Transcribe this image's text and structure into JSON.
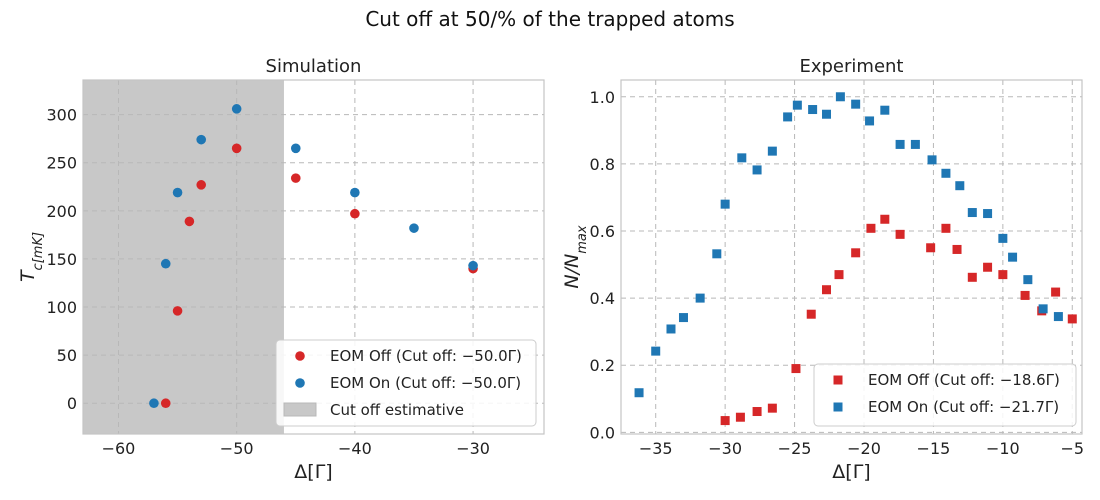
{
  "figure": {
    "suptitle": "Cut off at 50/% of the trapped atoms"
  },
  "colors": {
    "red": "#d62728",
    "blue": "#1f77b4",
    "shade": "#c8c8c8",
    "grid": "#c8c8c8",
    "frame": "#c4c4c4"
  },
  "chart_data": [
    {
      "type": "scatter",
      "title": "Simulation",
      "xlabel": "Δ[Γ]",
      "ylabel": "T_c[mK]",
      "xlim": [
        -63,
        -24
      ],
      "ylim": [
        -32,
        336
      ],
      "xticks": [
        -60,
        -50,
        -40,
        -30
      ],
      "xtick_labels": [
        "−60",
        "−50",
        "−40",
        "−30"
      ],
      "yticks": [
        0,
        50,
        100,
        150,
        200,
        250,
        300
      ],
      "ytick_labels": [
        "0",
        "50",
        "100",
        "150",
        "200",
        "250",
        "300"
      ],
      "shaded_region": {
        "x": [
          -63,
          -46
        ],
        "label": "Cut off estimative"
      },
      "grid": true,
      "legend_position": "lower-right",
      "marker": "circle",
      "series": [
        {
          "name": "EOM Off (Cut off: −50.0Γ)",
          "color": "#d62728",
          "points": [
            [
              -56,
              0
            ],
            [
              -55,
              96
            ],
            [
              -54,
              189
            ],
            [
              -53,
              227
            ],
            [
              -50,
              265
            ],
            [
              -45,
              234
            ],
            [
              -40,
              197
            ],
            [
              -30,
              140
            ]
          ]
        },
        {
          "name": "EOM On (Cut off: −50.0Γ)",
          "color": "#1f77b4",
          "points": [
            [
              -57,
              0
            ],
            [
              -56,
              145
            ],
            [
              -55,
              219
            ],
            [
              -53,
              274
            ],
            [
              -50,
              306
            ],
            [
              -45,
              265
            ],
            [
              -40,
              219
            ],
            [
              -35,
              182
            ],
            [
              -30,
              143
            ]
          ]
        }
      ]
    },
    {
      "type": "scatter",
      "title": "Experiment",
      "xlabel": "Δ[Γ]",
      "ylabel": "N/N_max",
      "xlim": [
        -37.5,
        -4.3
      ],
      "ylim": [
        -0.005,
        1.05
      ],
      "xticks": [
        -35,
        -30,
        -25,
        -20,
        -15,
        -10,
        -5
      ],
      "xtick_labels": [
        "−35",
        "−30",
        "−25",
        "−20",
        "−15",
        "−10",
        "−5"
      ],
      "yticks": [
        0.0,
        0.2,
        0.4,
        0.6,
        0.8,
        1.0
      ],
      "ytick_labels": [
        "0.0",
        "0.2",
        "0.4",
        "0.6",
        "0.8",
        "1.0"
      ],
      "grid": true,
      "legend_position": "lower-right",
      "marker": "square",
      "series": [
        {
          "name": "EOM Off (Cut off: −18.6Γ)",
          "color": "#d62728",
          "points": [
            [
              -30,
              0.035
            ],
            [
              -28.9,
              0.045
            ],
            [
              -27.7,
              0.062
            ],
            [
              -26.6,
              0.072
            ],
            [
              -24.9,
              0.19
            ],
            [
              -23.8,
              0.352
            ],
            [
              -22.7,
              0.425
            ],
            [
              -21.8,
              0.47
            ],
            [
              -20.6,
              0.535
            ],
            [
              -19.5,
              0.608
            ],
            [
              -18.5,
              0.635
            ],
            [
              -17.4,
              0.59
            ],
            [
              -15.2,
              0.55
            ],
            [
              -14.1,
              0.608
            ],
            [
              -13.3,
              0.545
            ],
            [
              -12.2,
              0.462
            ],
            [
              -11.1,
              0.492
            ],
            [
              -10.0,
              0.47
            ],
            [
              -8.4,
              0.408
            ],
            [
              -7.2,
              0.362
            ],
            [
              -6.2,
              0.418
            ],
            [
              -5.0,
              0.338
            ]
          ]
        },
        {
          "name": "EOM On (Cut off: −21.7Γ)",
          "color": "#1f77b4",
          "points": [
            [
              -36.2,
              0.118
            ],
            [
              -35,
              0.242
            ],
            [
              -33.9,
              0.308
            ],
            [
              -33,
              0.342
            ],
            [
              -31.8,
              0.4
            ],
            [
              -30.6,
              0.532
            ],
            [
              -30,
              0.68
            ],
            [
              -28.8,
              0.818
            ],
            [
              -27.7,
              0.782
            ],
            [
              -26.6,
              0.838
            ],
            [
              -25.5,
              0.94
            ],
            [
              -24.8,
              0.975
            ],
            [
              -23.7,
              0.962
            ],
            [
              -22.7,
              0.948
            ],
            [
              -21.7,
              1.0
            ],
            [
              -20.6,
              0.978
            ],
            [
              -19.6,
              0.928
            ],
            [
              -18.5,
              0.96
            ],
            [
              -17.4,
              0.858
            ],
            [
              -16.3,
              0.858
            ],
            [
              -15.1,
              0.812
            ],
            [
              -14.1,
              0.772
            ],
            [
              -13.1,
              0.735
            ],
            [
              -12.2,
              0.655
            ],
            [
              -11.1,
              0.652
            ],
            [
              -10.0,
              0.578
            ],
            [
              -9.3,
              0.522
            ],
            [
              -8.2,
              0.455
            ],
            [
              -7.1,
              0.368
            ],
            [
              -6.0,
              0.345
            ]
          ]
        }
      ]
    }
  ]
}
